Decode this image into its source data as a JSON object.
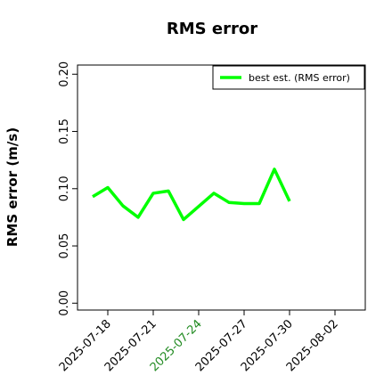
{
  "chart_data": {
    "type": "line",
    "title": "RMS error",
    "ylabel": "RMS error (m/s)",
    "x": [
      "2025-07-17",
      "2025-07-18",
      "2025-07-19",
      "2025-07-20",
      "2025-07-21",
      "2025-07-22",
      "2025-07-23",
      "2025-07-25",
      "2025-07-26",
      "2025-07-27",
      "2025-07-28",
      "2025-07-29",
      "2025-07-30"
    ],
    "series": [
      {
        "name": "best est. (RMS error)",
        "color": "#00ff00",
        "values": [
          0.093,
          0.101,
          0.085,
          0.075,
          0.096,
          0.098,
          0.073,
          0.096,
          0.088,
          0.087,
          0.087,
          0.117,
          0.089
        ]
      }
    ],
    "xlim": [
      "2025-07-16",
      "2025-08-04"
    ],
    "xticks": [
      "2025-07-18",
      "2025-07-21",
      "2025-07-24",
      "2025-07-27",
      "2025-07-30",
      "2025-08-02"
    ],
    "xtick_colors": [
      "#000000",
      "#000000",
      "#228b22",
      "#000000",
      "#000000",
      "#000000"
    ],
    "ylim": [
      -0.006,
      0.208
    ],
    "yticks": [
      {
        "value": 0,
        "label": "0.00"
      },
      {
        "value": 0.05,
        "label": "0.05"
      },
      {
        "value": 0.1,
        "label": "0.10"
      },
      {
        "value": 0.15,
        "label": "0.15"
      },
      {
        "value": 0.2,
        "label": "0.20"
      }
    ],
    "legend": "upper right"
  }
}
